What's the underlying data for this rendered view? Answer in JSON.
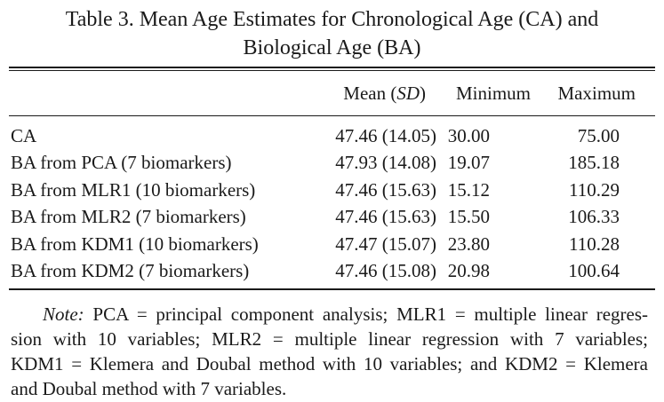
{
  "caption": {
    "line1": "Table 3.  Mean Age Estimates for Chronological Age (CA) and",
    "line2": "Biological Age (BA)"
  },
  "table": {
    "headers": {
      "mean_prefix": "Mean (",
      "mean_italic": "SD",
      "mean_suffix": ")",
      "minimum": "Minimum",
      "maximum": "Maximum"
    },
    "rows": [
      {
        "label": "CA",
        "mean": "47.46 (14.05)",
        "min": "30.00",
        "max": "75.00"
      },
      {
        "label": "BA from PCA (7 biomarkers)",
        "mean": "47.93 (14.08)",
        "min": "19.07",
        "max": "185.18"
      },
      {
        "label": "BA from MLR1 (10 biomarkers)",
        "mean": "47.46 (15.63)",
        "min": "15.12",
        "max": "110.29"
      },
      {
        "label": "BA from MLR2 (7 biomarkers)",
        "mean": "47.46 (15.63)",
        "min": "15.50",
        "max": "106.33"
      },
      {
        "label": "BA from KDM1 (10 biomarkers)",
        "mean": "47.47 (15.07)",
        "min": "23.80",
        "max": "110.28"
      },
      {
        "label": "BA from KDM2 (7 biomarkers)",
        "mean": "47.46 (15.08)",
        "min": "20.98",
        "max": "100.64"
      }
    ]
  },
  "note": {
    "label": "Note:",
    "line1": "PCA = principal component analysis; MLR1 = multiple linear regres-",
    "line2": "sion with 10 variables; MLR2 = multiple linear regression with 7 variables;",
    "line3": "KDM1 = Klemera and Doubal method with 10 variables; and KDM2 = Klemera",
    "line4": "and Doubal method with 7 variables."
  }
}
